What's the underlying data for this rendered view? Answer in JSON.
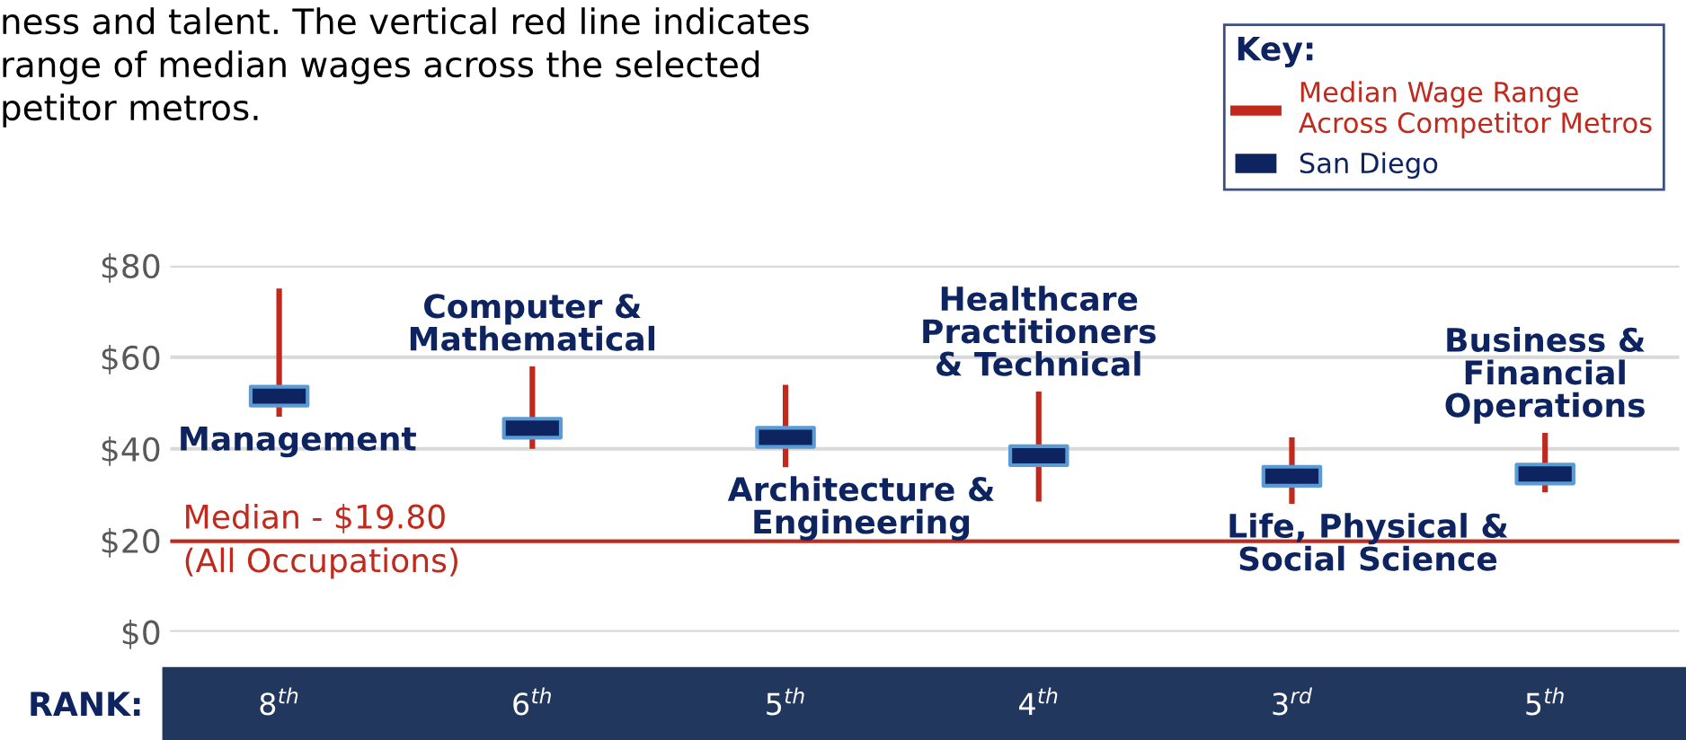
{
  "chart_data": {
    "type": "bar",
    "categories": [
      "Management",
      "Computer &\nMathematical",
      "Architecture &\nEngineering",
      "Healthcare\nPractitioners\n& Technical",
      "Life, Physical &\nSocial Science",
      "Business &\nFinancial\nOperations"
    ],
    "series": [
      {
        "name": "Median Wage Range\nAcross Competitor Metros",
        "color": "#c0291b",
        "base": [
          47,
          40,
          36,
          28.5,
          28,
          30.5
        ],
        "values": [
          28,
          18,
          18,
          24,
          14.5,
          13
        ]
      },
      {
        "name": "San Diego",
        "type": "scatter",
        "marker": "square",
        "color": "#0d2460",
        "values": [
          51.5,
          44.5,
          42.5,
          38.5,
          34,
          34.5
        ]
      }
    ],
    "ylim": [
      0,
      80
    ],
    "yticks": [
      {
        "value": 0,
        "label": "$0"
      },
      {
        "value": 20,
        "label": "$20"
      },
      {
        "value": 40,
        "label": "$40"
      },
      {
        "value": 60,
        "label": "$60"
      },
      {
        "value": 80,
        "label": "$80"
      }
    ],
    "grid": "y",
    "legend": "top right",
    "legend_title": "Key:",
    "ref_lines": [
      {
        "axis": "y",
        "value": 19.8,
        "label": "Median - $19.80\n(All Occupations)",
        "color": "#c0291b"
      }
    ],
    "annotations": [
      "ness and talent. The vertical red line indicates\nrange of median wages across the selected\npetitor metros.",
      "RANK:",
      "8$^{th}$",
      "6$^{th}$",
      "5$^{th}$",
      "4$^{th}$",
      "3$^{rd}$",
      "5$^{th}$"
    ]
  }
}
